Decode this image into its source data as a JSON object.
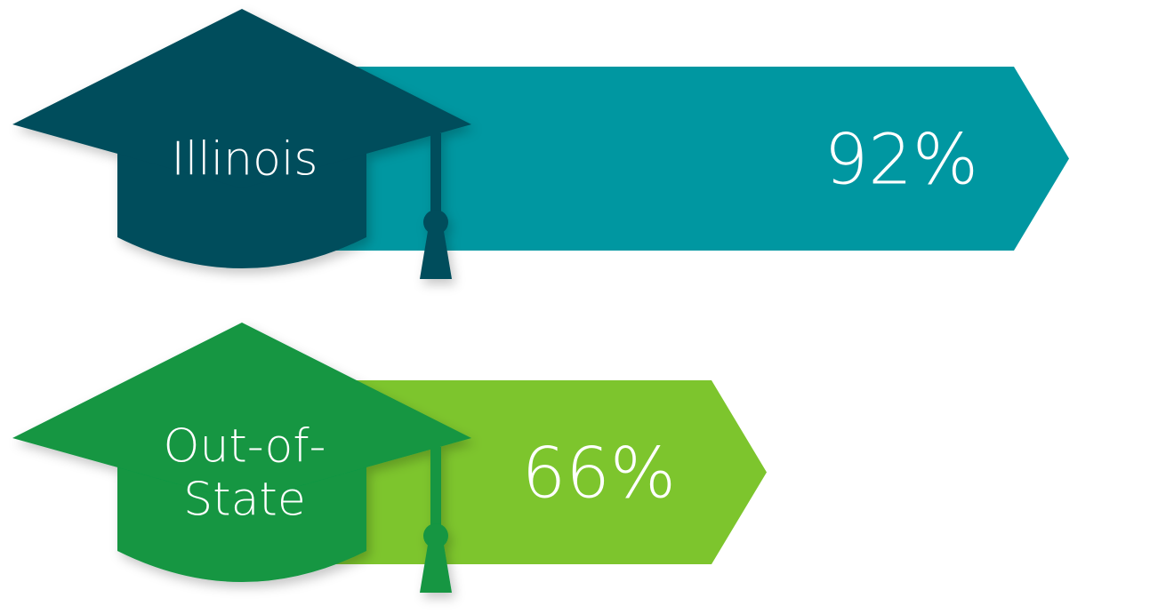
{
  "chart_data": {
    "type": "bar",
    "orientation": "horizontal",
    "categories": [
      "Illinois",
      "Out-of-State"
    ],
    "values": [
      92,
      66
    ],
    "value_labels": [
      "92%",
      "66%"
    ],
    "cap_labels": [
      [
        "Illinois"
      ],
      [
        "Out-of-",
        "State"
      ]
    ],
    "unit": "%",
    "xlim": [
      0,
      100
    ],
    "grid": false,
    "legend": "none",
    "colors": {
      "bar": [
        "#0097a1",
        "#7dc52d"
      ],
      "cap": [
        "#004d5b",
        "#129643"
      ]
    }
  }
}
